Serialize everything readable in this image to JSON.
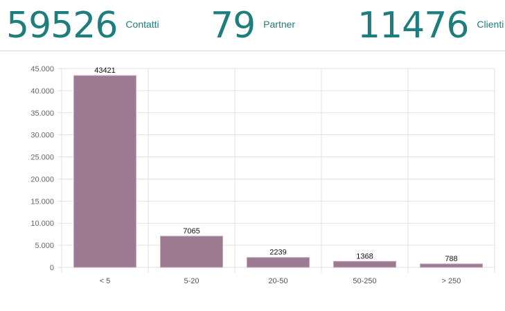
{
  "kpis": [
    {
      "value": "59526",
      "label": "Contatti"
    },
    {
      "value": "79",
      "label": "Partner"
    },
    {
      "value": "11476",
      "label": "Clienti"
    }
  ],
  "colors": {
    "accent": "#1e7d7d",
    "bar": "#9c7a91",
    "grid": "#e2e2e2"
  },
  "chart_data": {
    "type": "bar",
    "categories": [
      "< 5",
      "5-20",
      "20-50",
      "50-250",
      "> 250"
    ],
    "values": [
      43421,
      7065,
      2239,
      1368,
      788
    ],
    "y_ticks": [
      "0",
      "5.000",
      "10.000",
      "15.000",
      "20.000",
      "25.000",
      "30.000",
      "35.000",
      "40.000",
      "45.000"
    ],
    "ylim": [
      0,
      45000
    ],
    "grid": true,
    "legend": "none",
    "title": "",
    "xlabel": "",
    "ylabel": ""
  }
}
